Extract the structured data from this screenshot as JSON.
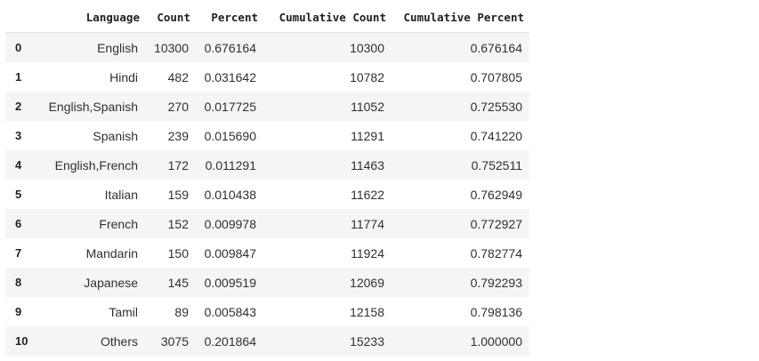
{
  "table": {
    "columns": [
      "",
      "Language",
      "Count",
      "Percent",
      "Cumulative Count",
      "Cumulative Percent"
    ],
    "rows": [
      {
        "index": "0",
        "language": "English",
        "count": "10300",
        "percent": "0.676164",
        "cum_count": "10300",
        "cum_percent": "0.676164"
      },
      {
        "index": "1",
        "language": "Hindi",
        "count": "482",
        "percent": "0.031642",
        "cum_count": "10782",
        "cum_percent": "0.707805"
      },
      {
        "index": "2",
        "language": "English,Spanish",
        "count": "270",
        "percent": "0.017725",
        "cum_count": "11052",
        "cum_percent": "0.725530"
      },
      {
        "index": "3",
        "language": "Spanish",
        "count": "239",
        "percent": "0.015690",
        "cum_count": "11291",
        "cum_percent": "0.741220"
      },
      {
        "index": "4",
        "language": "English,French",
        "count": "172",
        "percent": "0.011291",
        "cum_count": "11463",
        "cum_percent": "0.752511"
      },
      {
        "index": "5",
        "language": "Italian",
        "count": "159",
        "percent": "0.010438",
        "cum_count": "11622",
        "cum_percent": "0.762949"
      },
      {
        "index": "6",
        "language": "French",
        "count": "152",
        "percent": "0.009978",
        "cum_count": "11774",
        "cum_percent": "0.772927"
      },
      {
        "index": "7",
        "language": "Mandarin",
        "count": "150",
        "percent": "0.009847",
        "cum_count": "11924",
        "cum_percent": "0.782774"
      },
      {
        "index": "8",
        "language": "Japanese",
        "count": "145",
        "percent": "0.009519",
        "cum_count": "12069",
        "cum_percent": "0.792293"
      },
      {
        "index": "9",
        "language": "Tamil",
        "count": "89",
        "percent": "0.005843",
        "cum_count": "12158",
        "cum_percent": "0.798136"
      },
      {
        "index": "10",
        "language": "Others",
        "count": "3075",
        "percent": "0.201864",
        "cum_count": "15233",
        "cum_percent": "1.000000"
      }
    ]
  }
}
